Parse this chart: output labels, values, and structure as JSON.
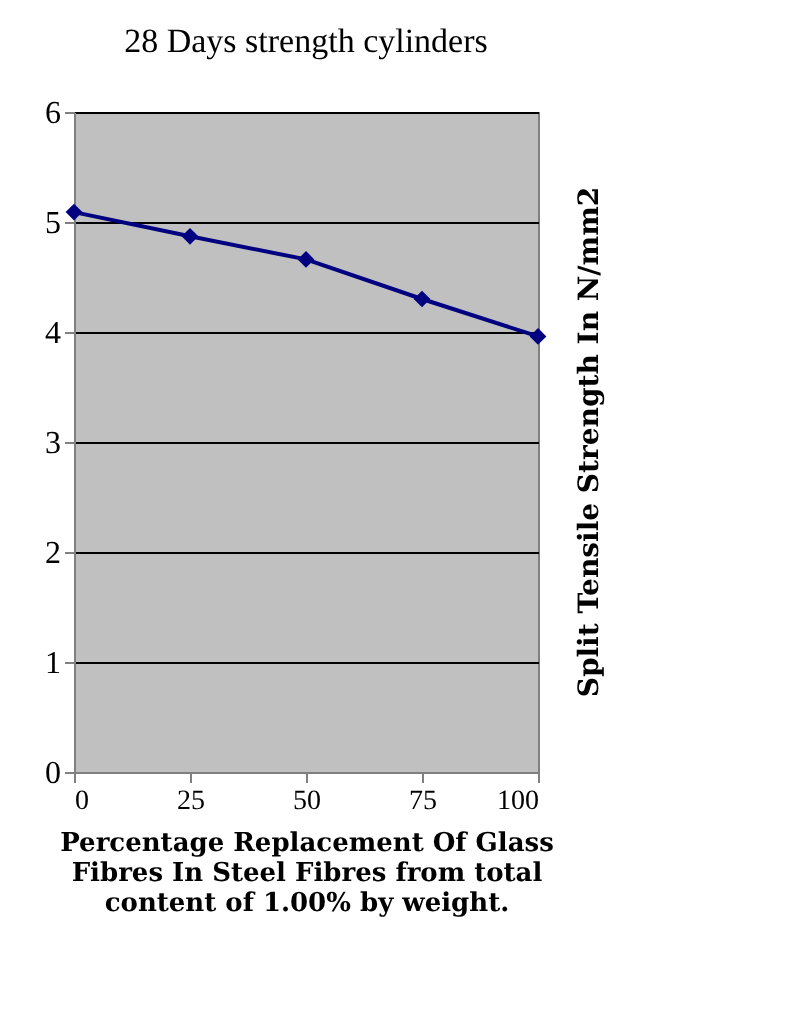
{
  "chart_data": {
    "type": "line",
    "title": "28 Days strength cylinders",
    "xlabel": "Percentage  Replacement Of Glass Fibres In Steel Fibres from total content of 1.00%  by weight.",
    "ylabel": "Split Tensile Strength In N/mm2",
    "x": [
      0,
      25,
      50,
      75,
      100
    ],
    "series": [
      {
        "color": "#000080",
        "values": [
          5.09,
          4.87,
          4.66,
          4.3,
          3.96
        ]
      }
    ],
    "xlim": [
      0,
      100
    ],
    "xticks": [
      0,
      25,
      50,
      75,
      100
    ],
    "ylim": [
      0,
      6
    ],
    "yticks": [
      0,
      1,
      2,
      3,
      4,
      5,
      6
    ],
    "grid": "y",
    "marker": "diamond",
    "line_style": "solid",
    "legend": false
  }
}
